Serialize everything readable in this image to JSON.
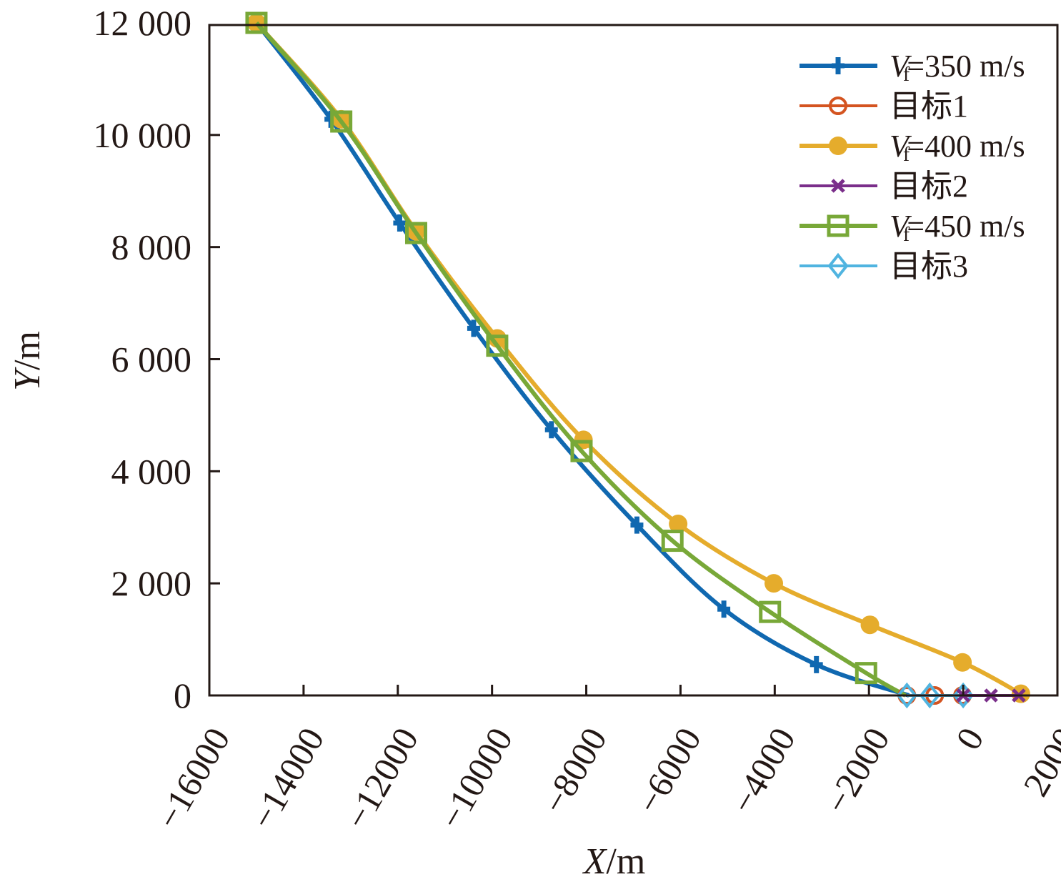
{
  "chart_data": {
    "type": "line",
    "title": "",
    "xlabel": {
      "var": "X",
      "unit": "/m"
    },
    "ylabel": {
      "var": "Y",
      "unit": "/m"
    },
    "xlim": [
      -16000,
      2000
    ],
    "ylim": [
      0,
      12000
    ],
    "xticks": [
      -16000,
      -14000,
      -12000,
      -10000,
      -8000,
      -6000,
      -4000,
      -2000,
      0,
      2000
    ],
    "xtick_labels": [
      "−16000",
      "−14000",
      "−12000",
      "−10000",
      "−8000",
      "−6000",
      "−4000",
      "−2000",
      "0",
      "2000"
    ],
    "yticks": [
      0,
      2000,
      4000,
      6000,
      8000,
      10000,
      12000
    ],
    "ytick_labels": [
      "0",
      "2 000",
      "4 000",
      "6 000",
      "8 000",
      "10 000",
      "12 000"
    ],
    "grid": false,
    "legend_position": "top-right",
    "series": [
      {
        "name": "Vf=350 m/s",
        "legend": {
          "var": "V",
          "sub": "f",
          "rest": "=350 m/s"
        },
        "color": "#1068B0",
        "marker": "plus",
        "width": 6,
        "x": [
          -15000,
          -13420,
          -11960,
          -10390,
          -8740,
          -6925,
          -5080,
          -3115,
          -1150
        ],
        "y": [
          12000,
          10280,
          8430,
          6550,
          4740,
          3040,
          1540,
          550,
          0
        ]
      },
      {
        "name": "目标1",
        "legend": {
          "text": "目标1"
        },
        "color": "#D45420",
        "marker": "circle",
        "width": 4,
        "x": [
          -1195,
          -605,
          -15
        ],
        "y": [
          0,
          0,
          0
        ]
      },
      {
        "name": "Vf=400 m/s",
        "legend": {
          "var": "V",
          "sub": "f",
          "rest": "=400 m/s"
        },
        "color": "#E5AC2C",
        "marker": "dot",
        "width": 6,
        "x": [
          -15000,
          -13200,
          -11610,
          -9890,
          -8060,
          -6050,
          -4020,
          -1980,
          -15,
          1225
        ],
        "y": [
          12000,
          10280,
          8280,
          6370,
          4560,
          3060,
          2000,
          1260,
          590,
          30
        ]
      },
      {
        "name": "目标2",
        "legend": {
          "text": "目标2"
        },
        "color": "#7A2E8A",
        "marker": "x",
        "width": 4,
        "x": [
          0,
          590,
          1180
        ],
        "y": [
          0,
          0,
          0
        ]
      },
      {
        "name": "Vf=450 m/s",
        "legend": {
          "var": "V",
          "sub": "f",
          "rest": "=450 m/s"
        },
        "color": "#78A838",
        "marker": "square",
        "width": 6,
        "x": [
          -15000,
          -13200,
          -11610,
          -9890,
          -8100,
          -6170,
          -4100,
          -2060,
          -1225
        ],
        "y": [
          12000,
          10240,
          8250,
          6240,
          4360,
          2760,
          1490,
          400,
          0
        ]
      },
      {
        "name": "目标3",
        "legend": {
          "text": "目标3"
        },
        "color": "#50B4E0",
        "marker": "diamond",
        "width": 4,
        "x": [
          -1195,
          -710,
          0
        ],
        "y": [
          0,
          0,
          0
        ]
      }
    ],
    "marker_counts": [
      8,
      3,
      9,
      2,
      8,
      2
    ]
  }
}
